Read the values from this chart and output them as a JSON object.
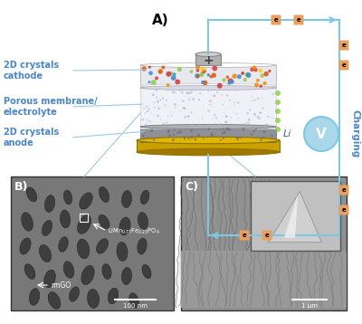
{
  "bg_color": "#ffffff",
  "label_A": "A)",
  "label_B": "B)",
  "label_C": "C)",
  "label_charging": "Charging",
  "label_cathode": "2D crystals\ncathode",
  "label_membrane": "Porous membrane/\nelectrolyte",
  "label_anode": "2D crystals\nanode",
  "label_li": "Li",
  "label_100nm": "100 nm",
  "label_1um": "1 μm",
  "label_rmgo": "rmGO",
  "label_compound": "LiMn₀.₇₇Fe₀.₂₃PO₄",
  "label_plus": "+",
  "label_V": "V",
  "label_e": "e",
  "circuit_color": "#7ec8e3",
  "text_blue": "#4a86c8",
  "gold_color": "#c8a000",
  "electron_color": "#e8a060",
  "conn_color": "#9ec9de",
  "line_color": "#9ec9e0"
}
